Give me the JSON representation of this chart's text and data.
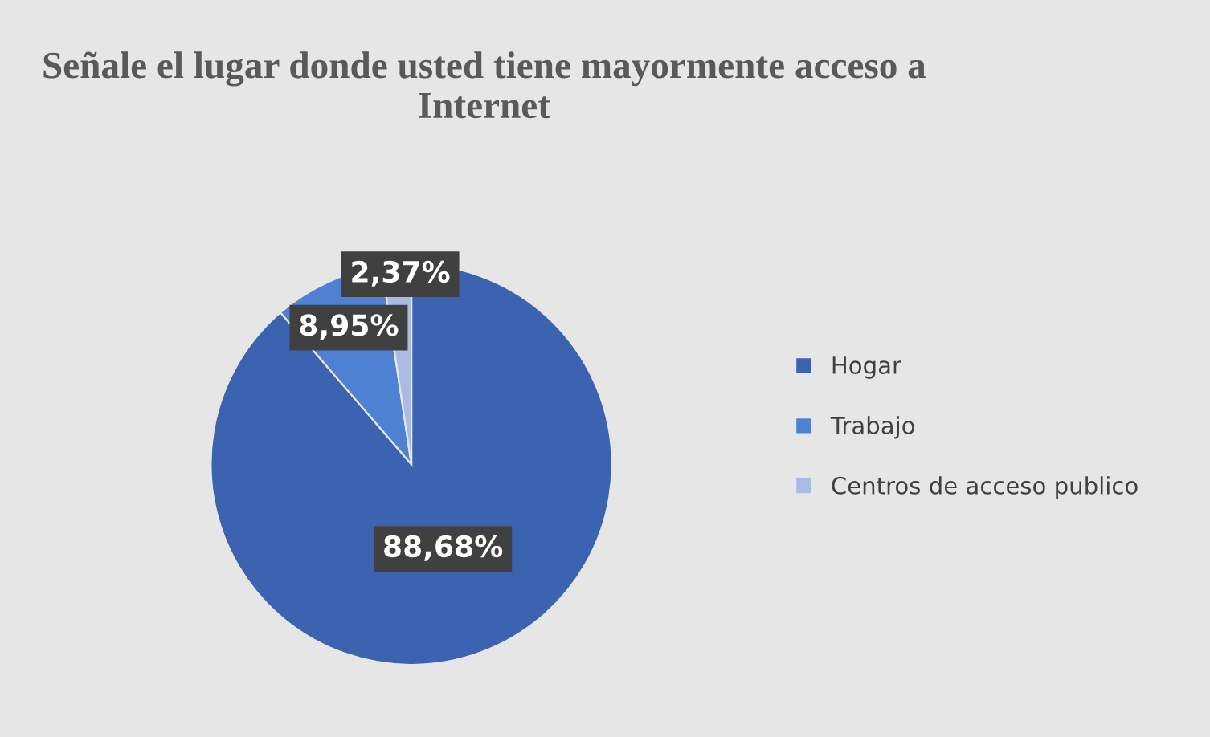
{
  "chart_data": {
    "type": "pie",
    "title": "Señale el lugar donde usted tiene mayormente acceso a Internet",
    "categories": [
      "Hogar",
      "Trabajo",
      "Centros de acceso publico"
    ],
    "values": [
      88.68,
      8.95,
      2.37
    ],
    "colors": [
      "#3b63b0",
      "#4f81d3",
      "#aabbe3"
    ],
    "value_labels": [
      "88,68%",
      "8,95%",
      "2,37%"
    ],
    "legend": "right"
  }
}
